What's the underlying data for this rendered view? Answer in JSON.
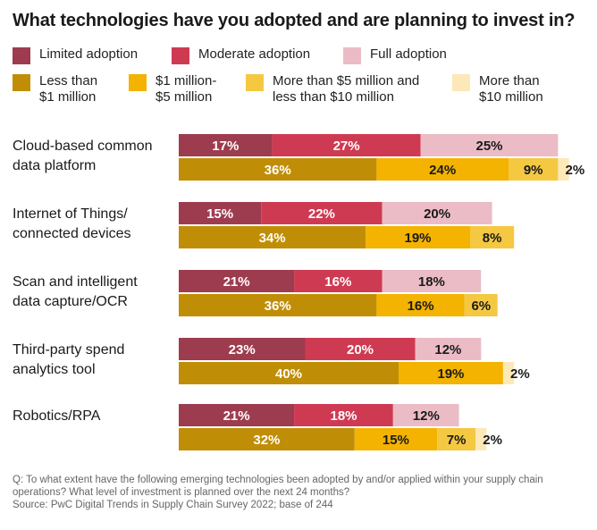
{
  "title": "What technologies have you adopted and are planning to invest in?",
  "legend": [
    {
      "label": "Limited adoption",
      "color": "#9e3c4f"
    },
    {
      "label": "Moderate adoption",
      "color": "#cf3a53"
    },
    {
      "label": "Full adoption",
      "color": "#ebbcc6"
    },
    {
      "label": "Less than\n$1 million",
      "color": "#c08e06"
    },
    {
      "label": "$1 million-\n$5 million",
      "color": "#f3b300"
    },
    {
      "label": "More than $5 million and\nless than $10 million",
      "color": "#f5c842"
    },
    {
      "label": "More than\n$10 million",
      "color": "#fde9b8"
    }
  ],
  "chart_data": {
    "type": "bar",
    "orientation": "horizontal",
    "stacked": true,
    "categories": [
      "Cloud-based common\ndata platform",
      "Internet of Things/\nconnected devices",
      "Scan and intelligent\ndata capture/OCR",
      "Third-party spend\nanalytics tool",
      "Robotics/RPA"
    ],
    "adoption_series": [
      {
        "name": "Limited adoption",
        "values": [
          17,
          15,
          21,
          23,
          21
        ]
      },
      {
        "name": "Moderate adoption",
        "values": [
          27,
          22,
          16,
          20,
          18
        ]
      },
      {
        "name": "Full adoption",
        "values": [
          25,
          20,
          18,
          12,
          12
        ]
      }
    ],
    "investment_series": [
      {
        "name": "Less than $1 million",
        "values": [
          36,
          34,
          36,
          40,
          32
        ]
      },
      {
        "name": "$1 million-$5 million",
        "values": [
          24,
          19,
          16,
          19,
          15
        ]
      },
      {
        "name": "More than $5 million and less than $10 million",
        "values": [
          9,
          8,
          6,
          0,
          7
        ]
      },
      {
        "name": "More than $10 million",
        "values": [
          2,
          0,
          0,
          2,
          2
        ]
      }
    ],
    "value_suffix": "%"
  },
  "footnote": {
    "question": "Q: To what extent have the following emerging technologies been adopted by and/or applied within your supply chain operations? What level of investment is planned over the next 24 months?",
    "source": "Source: PwC Digital Trends in Supply Chain Survey 2022; base of 244"
  }
}
